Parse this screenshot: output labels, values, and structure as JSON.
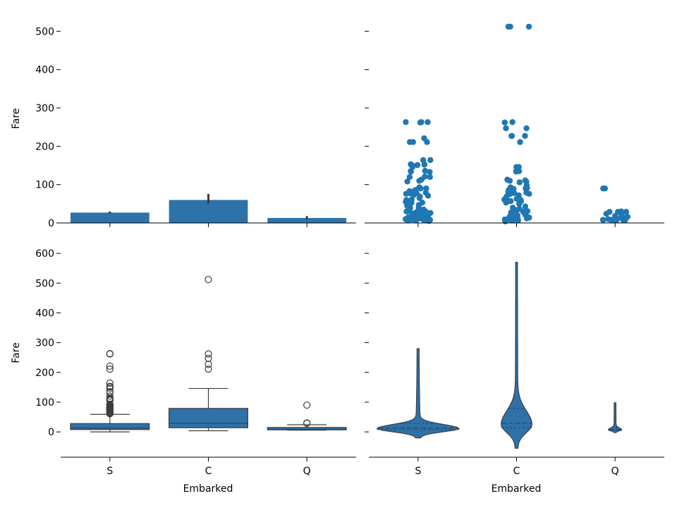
{
  "figure": {
    "ylabel": "Fare",
    "xlabel": "Embarked"
  },
  "colors": {
    "fill": "#2e72aa",
    "point": "#1f77b4",
    "edge": "#3d3d3d",
    "axis": "#000000"
  },
  "chart_data": [
    {
      "type": "bar",
      "panel": "top-left",
      "categories": [
        "S",
        "C",
        "Q"
      ],
      "values": [
        27,
        60,
        13
      ],
      "ci": [
        [
          24,
          30
        ],
        [
          50,
          76
        ],
        [
          9,
          18
        ]
      ],
      "ylabel": "Fare",
      "ylim": [
        0,
        530
      ],
      "yticks": [
        0,
        100,
        200,
        300,
        400,
        500
      ]
    },
    {
      "type": "scatter",
      "panel": "top-right",
      "categories": [
        "S",
        "C",
        "Q"
      ],
      "points": {
        "S": [
          5,
          7,
          7,
          7,
          7,
          8,
          8,
          8,
          8,
          9,
          9,
          10,
          10,
          11,
          11,
          12,
          13,
          13,
          13,
          14,
          15,
          15,
          16,
          16,
          17,
          18,
          20,
          21,
          23,
          24,
          25,
          26,
          26,
          27,
          27,
          28,
          29,
          30,
          31,
          33,
          35,
          39,
          40,
          45,
          47,
          52,
          53,
          55,
          57,
          60,
          61,
          65,
          69,
          71,
          73,
          76,
          77,
          78,
          79,
          81,
          83,
          86,
          90,
          90,
          93,
          108,
          110,
          113,
          120,
          120,
          121,
          133,
          134,
          135,
          136,
          146,
          151,
          151,
          151,
          152,
          153,
          153,
          164,
          164,
          211,
          211,
          211,
          221,
          262,
          263,
          263,
          263
        ],
        "C": [
          4,
          7,
          7,
          7,
          8,
          8,
          9,
          12,
          13,
          14,
          14,
          15,
          15,
          15,
          16,
          18,
          20,
          22,
          24,
          26,
          27,
          28,
          30,
          30,
          31,
          34,
          37,
          40,
          43,
          50,
          53,
          56,
          57,
          57,
          60,
          61,
          63,
          69,
          72,
          75,
          76,
          78,
          79,
          80,
          82,
          83,
          86,
          89,
          90,
          91,
          93,
          99,
          106,
          108,
          110,
          111,
          113,
          134,
          135,
          136,
          146,
          146,
          211,
          227,
          227,
          227,
          247,
          247,
          262,
          263,
          512,
          512,
          512
        ],
        "Q": [
          7,
          7,
          8,
          8,
          8,
          8,
          8,
          9,
          10,
          12,
          15,
          15,
          16,
          18,
          24,
          24,
          29,
          29,
          29,
          30,
          90,
          90
        ]
      },
      "ylim": [
        0,
        530
      ],
      "yticks": [
        0,
        100,
        200,
        300,
        400,
        500
      ]
    },
    {
      "type": "box",
      "panel": "bottom-left",
      "categories": [
        "S",
        "C",
        "Q"
      ],
      "boxes": [
        {
          "q1": 8,
          "median": 13,
          "q3": 28,
          "whislo": 0,
          "whishi": 59,
          "fliers": [
            61,
            63,
            65,
            66,
            69,
            71,
            73,
            75,
            76,
            77,
            78,
            79,
            80,
            81,
            82,
            83,
            86,
            89,
            90,
            91,
            93,
            106,
            108,
            110,
            113,
            120,
            133,
            134,
            135,
            146,
            151,
            153,
            164,
            211,
            221,
            262,
            263
          ]
        },
        {
          "q1": 14,
          "median": 29,
          "q3": 79,
          "whislo": 4,
          "whishi": 146,
          "fliers": [
            211,
            227,
            247,
            262,
            512
          ]
        },
        {
          "q1": 7,
          "median": 8,
          "q3": 15,
          "whislo": 6,
          "whishi": 24,
          "fliers": [
            29,
            30,
            90
          ]
        }
      ],
      "ylabel": "Fare",
      "xlabel": "Embarked",
      "ylim": [
        -85,
        650
      ],
      "yticks": [
        0,
        100,
        200,
        300,
        400,
        500,
        600
      ]
    },
    {
      "type": "violin",
      "panel": "bottom-right",
      "categories": [
        "S",
        "C",
        "Q"
      ],
      "violins": [
        {
          "ymin": -20,
          "ymax": 280,
          "q1": 8,
          "median": 13,
          "q3": 28
        },
        {
          "ymin": -55,
          "ymax": 570,
          "q1": 14,
          "median": 29,
          "q3": 79
        },
        {
          "ymin": -2,
          "ymax": 98,
          "q1": 7,
          "median": 8,
          "q3": 15
        }
      ],
      "xlabel": "Embarked",
      "ylim": [
        -85,
        650
      ],
      "yticks": [
        0,
        100,
        200,
        300,
        400,
        500,
        600
      ]
    }
  ]
}
